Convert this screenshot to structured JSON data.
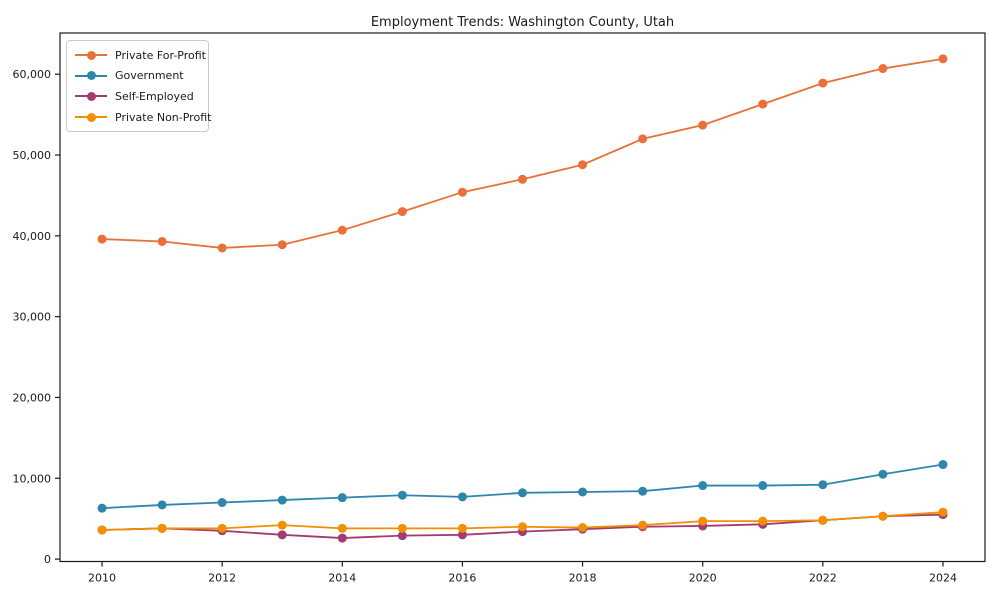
{
  "chart_data": {
    "type": "line",
    "title": "Employment Trends: Washington County, Utah",
    "x": [
      2010,
      2011,
      2012,
      2013,
      2014,
      2015,
      2016,
      2017,
      2018,
      2019,
      2020,
      2021,
      2022,
      2023,
      2024
    ],
    "series": [
      {
        "name": "Private For-Profit",
        "color": "#E8713A",
        "values": [
          39600,
          39300,
          38500,
          38900,
          40700,
          43000,
          45400,
          47000,
          48800,
          52000,
          53700,
          56300,
          58900,
          60700,
          61900
        ]
      },
      {
        "name": "Government",
        "color": "#2E86AB",
        "values": [
          6300,
          6700,
          7000,
          7300,
          7600,
          7900,
          7700,
          8200,
          8300,
          8400,
          9100,
          9100,
          9200,
          10500,
          11700
        ]
      },
      {
        "name": "Self-Employed",
        "color": "#A23B72",
        "values": [
          3600,
          3800,
          3500,
          3000,
          2600,
          2900,
          3000,
          3400,
          3700,
          4000,
          4100,
          4300,
          4800,
          5300,
          5500
        ]
      },
      {
        "name": "Private Non-Profit",
        "color": "#F18F01",
        "values": [
          3600,
          3800,
          3800,
          4200,
          3800,
          3800,
          3800,
          4000,
          3900,
          4200,
          4700,
          4700,
          4800,
          5300,
          5800
        ]
      }
    ],
    "x_tick_values": [
      2010,
      2012,
      2014,
      2016,
      2018,
      2020,
      2022,
      2024
    ],
    "x_tick_labels": [
      "2010",
      "2012",
      "2014",
      "2016",
      "2018",
      "2020",
      "2022",
      "2024"
    ],
    "y_tick_values": [
      0,
      10000,
      20000,
      30000,
      40000,
      50000,
      60000
    ],
    "y_tick_labels": [
      "0",
      "10,000",
      "20,000",
      "30,000",
      "40,000",
      "50,000",
      "60,000"
    ],
    "xlim": [
      2009.3,
      2024.7
    ],
    "ylim": [
      -300,
      65100
    ],
    "legend_position": "upper left",
    "grid": false,
    "marker": "circle",
    "axis_color": "#1a1a1a"
  }
}
